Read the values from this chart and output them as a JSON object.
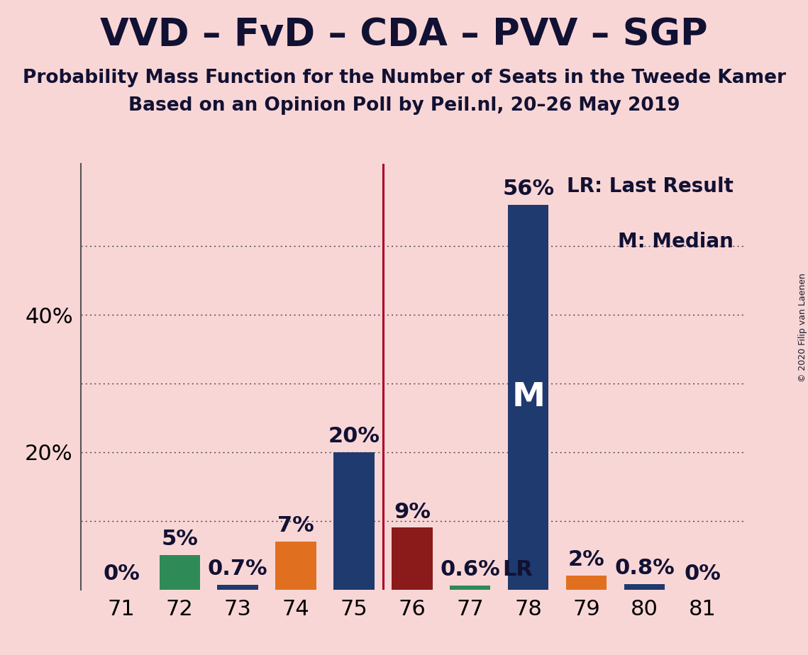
{
  "title": "VVD – FvD – CDA – PVV – SGP",
  "subtitle1": "Probability Mass Function for the Number of Seats in the Tweede Kamer",
  "subtitle2": "Based on an Opinion Poll by Peil.nl, 20–26 May 2019",
  "copyright": "© 2020 Filip van Laenen",
  "seats": [
    71,
    72,
    73,
    74,
    75,
    76,
    77,
    78,
    79,
    80,
    81
  ],
  "probabilities": [
    0.0,
    5.0,
    0.7,
    7.0,
    20.0,
    9.0,
    0.6,
    56.0,
    2.0,
    0.8,
    0.0
  ],
  "bar_colors": [
    "#1e3a6e",
    "#2e8b57",
    "#1e3a6e",
    "#e07020",
    "#1e3a6e",
    "#8b1a1a",
    "#2e8b57",
    "#1e3a6e",
    "#e07020",
    "#1e3a6e",
    "#1e3a6e"
  ],
  "background_color": "#f9d6d6",
  "vline_x": 75.5,
  "vline_color": "#aa0022",
  "median_seat": 78,
  "lr_seat": 77,
  "legend_text1": "LR: Last Result",
  "legend_text2": "M: Median",
  "yticks": [
    20,
    40
  ],
  "grid_dotted_ticks": [
    10,
    20,
    30,
    40,
    50
  ],
  "ylim_max": 62,
  "bar_width": 0.7,
  "title_fontsize": 38,
  "subtitle_fontsize": 19,
  "tick_fontsize": 22,
  "annotation_fontsize": 22,
  "legend_fontsize": 20,
  "copyright_fontsize": 9,
  "m_label_fontsize": 34,
  "lr_label_fontsize": 22
}
